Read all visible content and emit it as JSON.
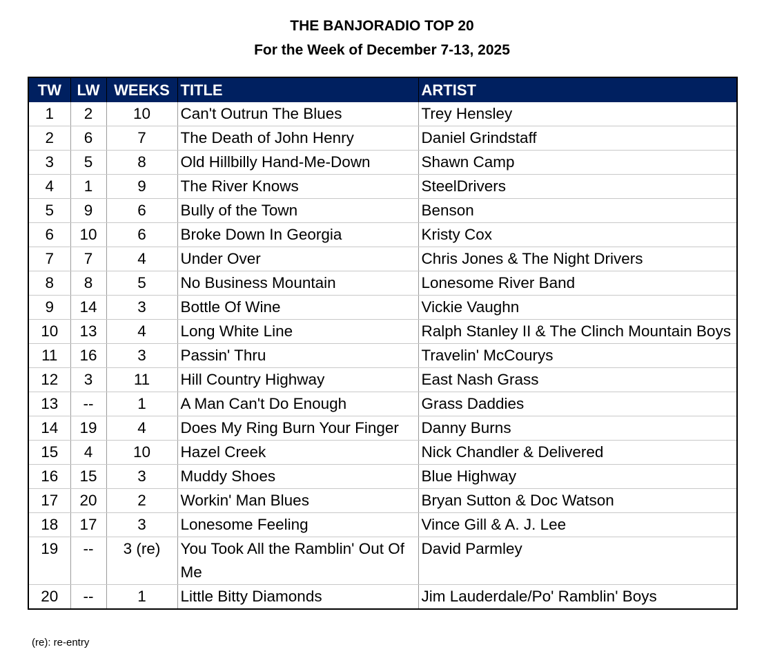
{
  "title": "THE BANJORADIO TOP 20",
  "subtitle": "For the Week of December 7-13, 2025",
  "header_color": "#002060",
  "columns": [
    "TW",
    "LW",
    "WEEKS",
    "TITLE",
    "ARTIST"
  ],
  "rows": [
    [
      "1",
      "2",
      "10",
      "Can't Outrun The Blues",
      "Trey Hensley"
    ],
    [
      "2",
      "6",
      "7",
      "The Death of John Henry",
      "Daniel Grindstaff"
    ],
    [
      "3",
      "5",
      "8",
      "Old Hillbilly Hand-Me-Down",
      "Shawn Camp"
    ],
    [
      "4",
      "1",
      "9",
      "The River Knows",
      "SteelDrivers"
    ],
    [
      "5",
      "9",
      "6",
      "Bully of the Town",
      "Benson"
    ],
    [
      "6",
      "10",
      "6",
      "Broke Down In Georgia",
      "Kristy Cox"
    ],
    [
      "7",
      "7",
      "4",
      "Under Over",
      "Chris Jones & The Night Drivers"
    ],
    [
      "8",
      "8",
      "5",
      "No Business Mountain",
      "Lonesome River Band"
    ],
    [
      "9",
      "14",
      "3",
      "Bottle Of Wine",
      "Vickie Vaughn"
    ],
    [
      "10",
      "13",
      "4",
      "Long White Line",
      "Ralph Stanley II & The Clinch Mountain Boys"
    ],
    [
      "11",
      "16",
      "3",
      "Passin' Thru",
      "Travelin' McCourys"
    ],
    [
      "12",
      "3",
      "11",
      "Hill Country Highway",
      "East Nash Grass"
    ],
    [
      "13",
      "--",
      "1",
      "A Man Can't Do Enough",
      "Grass Daddies"
    ],
    [
      "14",
      "19",
      "4",
      "Does My Ring Burn Your Finger",
      "Danny Burns"
    ],
    [
      "15",
      "4",
      "10",
      "Hazel Creek",
      "Nick Chandler & Delivered"
    ],
    [
      "16",
      "15",
      "3",
      "Muddy Shoes",
      "Blue Highway"
    ],
    [
      "17",
      "20",
      "2",
      "Workin' Man Blues",
      "Bryan Sutton & Doc Watson"
    ],
    [
      "18",
      "17",
      "3",
      "Lonesome Feeling",
      "Vince Gill & A. J. Lee"
    ],
    [
      "19",
      "--",
      "3 (re)",
      "You Took All the Ramblin' Out Of Me",
      "David Parmley"
    ],
    [
      "20",
      "--",
      "1",
      "Little Bitty Diamonds",
      "Jim Lauderdale/Po' Ramblin' Boys"
    ]
  ],
  "footnote": "(re): re-entry"
}
